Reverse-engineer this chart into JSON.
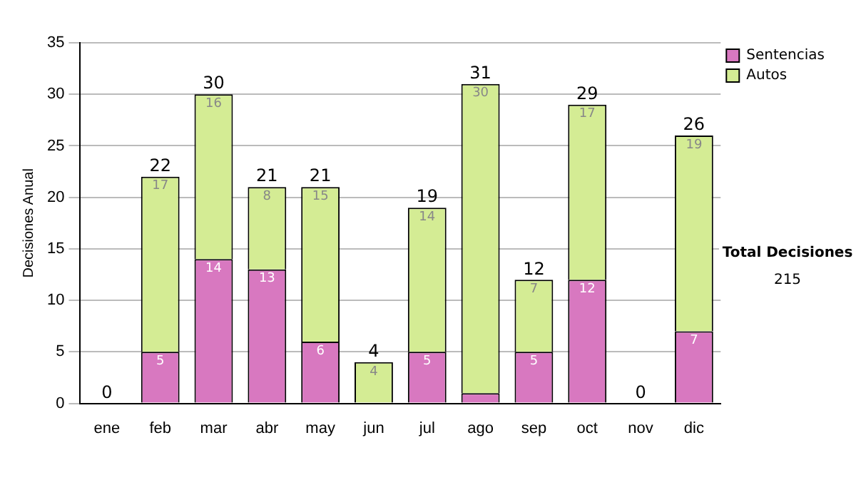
{
  "chart_data": {
    "type": "bar",
    "stacked": true,
    "ylabel": "Decisiones Anual",
    "categories": [
      "ene",
      "feb",
      "mar",
      "abr",
      "may",
      "jun",
      "jul",
      "ago",
      "sep",
      "oct",
      "nov",
      "dic"
    ],
    "series": [
      {
        "name": "Sentencias",
        "color": "#d878c0",
        "values": [
          0,
          5,
          14,
          13,
          6,
          0,
          5,
          1,
          5,
          12,
          0,
          7
        ],
        "value_labels": [
          null,
          "5",
          "14",
          "13",
          "6",
          null,
          "5",
          null,
          "5",
          "12",
          null,
          "7"
        ]
      },
      {
        "name": "Autos",
        "color": "#d4ec94",
        "values": [
          0,
          17,
          16,
          8,
          15,
          4,
          14,
          30,
          7,
          17,
          0,
          19
        ],
        "value_labels": [
          null,
          "17",
          "16",
          "8",
          "15",
          "4",
          "14",
          "30",
          "7",
          "17",
          null,
          "19"
        ]
      }
    ],
    "totals": [
      "0",
      "22",
      "30",
      "21",
      "21",
      "4",
      "19",
      "31",
      "12",
      "29",
      "0",
      "26"
    ],
    "ylim": [
      0,
      35
    ],
    "yticks": [
      0,
      5,
      10,
      15,
      20,
      25,
      30,
      35
    ],
    "grid": "y",
    "legend": "right",
    "annotations": [
      "Total Decisiones",
      "215"
    ]
  }
}
